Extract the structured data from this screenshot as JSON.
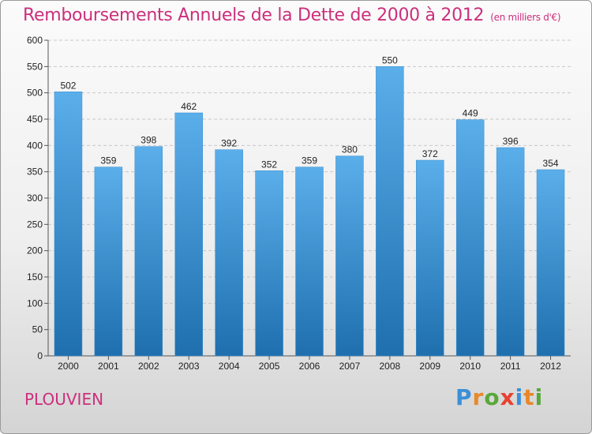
{
  "header": {
    "title": "Remboursements Annuels de la Dette de 2000 à 2012",
    "unit": "(en milliers d'€)"
  },
  "footer": {
    "commune": "PLOUVIEN",
    "logo_letters": [
      {
        "ch": "P",
        "color": "#3c8fd8"
      },
      {
        "ch": "r",
        "color": "#e8882a"
      },
      {
        "ch": "o",
        "color": "#5aa83a"
      },
      {
        "ch": "x",
        "color": "#e8412f"
      },
      {
        "ch": "i",
        "color": "#3c8fd8"
      },
      {
        "ch": "t",
        "color": "#e8882a"
      },
      {
        "ch": "i",
        "color": "#5aa83a"
      }
    ]
  },
  "colors": {
    "bar_top": "#5aaeea",
    "bar_bottom": "#1f6fae",
    "title": "#cc2f7c"
  },
  "chart_data": {
    "type": "bar",
    "categories": [
      "2000",
      "2001",
      "2002",
      "2003",
      "2004",
      "2005",
      "2006",
      "2007",
      "2008",
      "2009",
      "2010",
      "2011",
      "2012"
    ],
    "values": [
      502,
      359,
      398,
      462,
      392,
      352,
      359,
      380,
      550,
      372,
      449,
      396,
      354
    ],
    "ylim": [
      0,
      600
    ],
    "yticks": [
      0,
      50,
      100,
      150,
      200,
      250,
      300,
      350,
      400,
      450,
      500,
      550,
      600
    ],
    "grid": true
  }
}
